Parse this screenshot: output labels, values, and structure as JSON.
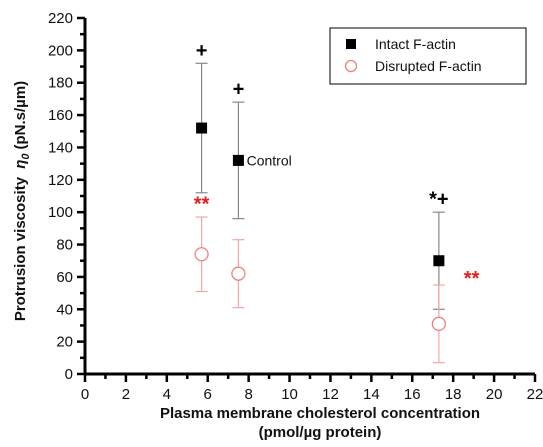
{
  "chart_data": {
    "type": "scatter",
    "title": "",
    "xlabel": "Plasma membrane cholesterol concentration",
    "xlabel_line2": "(pmol/µg protein)",
    "ylabel": "Protrusion viscosity",
    "ylabel_symbol": "η",
    "ylabel_subscript": "0",
    "ylabel_units": "(pN.s/µm)",
    "xlim": [
      0,
      22
    ],
    "ylim": [
      0,
      220
    ],
    "xticks": [
      0,
      2,
      4,
      6,
      8,
      10,
      12,
      14,
      16,
      18,
      20,
      22
    ],
    "yticks": [
      0,
      20,
      40,
      60,
      80,
      100,
      120,
      140,
      160,
      180,
      200,
      220
    ],
    "grid": false,
    "legend_position": "top-right",
    "series": [
      {
        "name": "Intact F-actin",
        "marker": "filled-square",
        "color": "#000000",
        "points": [
          {
            "x": 5.7,
            "y": 152,
            "err": 40
          },
          {
            "x": 7.5,
            "y": 132,
            "err": 36
          },
          {
            "x": 17.3,
            "y": 70,
            "err": 30
          }
        ]
      },
      {
        "name": "Disrupted F-actin",
        "marker": "open-circle",
        "color": "#f08080",
        "points": [
          {
            "x": 5.7,
            "y": 74,
            "err": 23
          },
          {
            "x": 7.5,
            "y": 62,
            "err": 21
          },
          {
            "x": 17.3,
            "y": 31,
            "err": 24
          }
        ]
      }
    ],
    "annotations": [
      {
        "text": "+",
        "x": 5.7,
        "y": 196,
        "color": "#000000",
        "kind": "mark"
      },
      {
        "text": "+",
        "x": 7.5,
        "y": 172,
        "color": "#000000",
        "kind": "mark"
      },
      {
        "text": "*+",
        "x": 17.3,
        "y": 104,
        "color": "#000000",
        "kind": "mark"
      },
      {
        "text": "**",
        "x": 5.7,
        "y": 101,
        "color": "#e02020",
        "kind": "mark"
      },
      {
        "text": "**",
        "x": 18.9,
        "y": 55,
        "color": "#e02020",
        "kind": "mark"
      },
      {
        "text": "Control",
        "x": 7.9,
        "y": 132,
        "color": "#111111",
        "kind": "text"
      }
    ]
  }
}
